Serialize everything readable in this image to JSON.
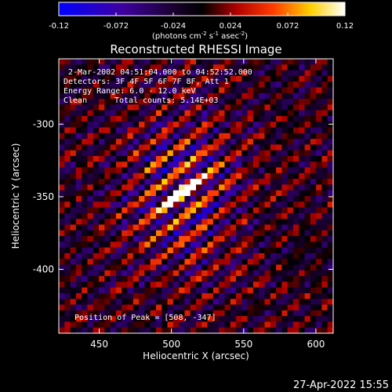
{
  "colorbar": {
    "ticks": [
      "-0.12",
      "-0.072",
      "-0.024",
      "0.024",
      "0.072",
      "0.12"
    ],
    "units_prefix": "(photons cm",
    "units_exp1": "-2",
    "units_mid": " s",
    "units_exp2": "-1",
    "units_mid2": " asec",
    "units_exp3": "-2",
    "units_suffix": ")",
    "min": -0.12,
    "max": 0.12
  },
  "chart_data": {
    "type": "heatmap",
    "title": "Reconstructed RHESSI Image",
    "xlabel": "Heliocentric X (arcsec)",
    "ylabel": "Heliocentric Y (arcsec)",
    "x_ticks": [
      "450",
      "500",
      "550",
      "600"
    ],
    "y_ticks": [
      "-300",
      "-350",
      "-400"
    ],
    "xlim": [
      422,
      612
    ],
    "ylim": [
      -444,
      -255
    ],
    "annotations": {
      "time_range": "2-Mar-2002 04:51:04.000 to 04:52:52.000",
      "detectors": "Detectors: 3F 4F 5F 6F 7F 8F, Att 1",
      "energy": "Energy Range: 6.0 - 12.0 keV",
      "clean_label": "Clean",
      "total_counts": "Total counts: 5.14E+03",
      "peak": "Position of Peak = [508, -347]"
    },
    "peak_position": [
      508,
      -347
    ],
    "color_scale": "red-temperature",
    "colors": {
      "low": "#0000ff",
      "mid": "#000000",
      "high": "#ffffff",
      "positive_mid": "#ff0000",
      "positive_high": "#ffff00"
    }
  },
  "footer": {
    "timestamp": "27-Apr-2022 15:55"
  }
}
